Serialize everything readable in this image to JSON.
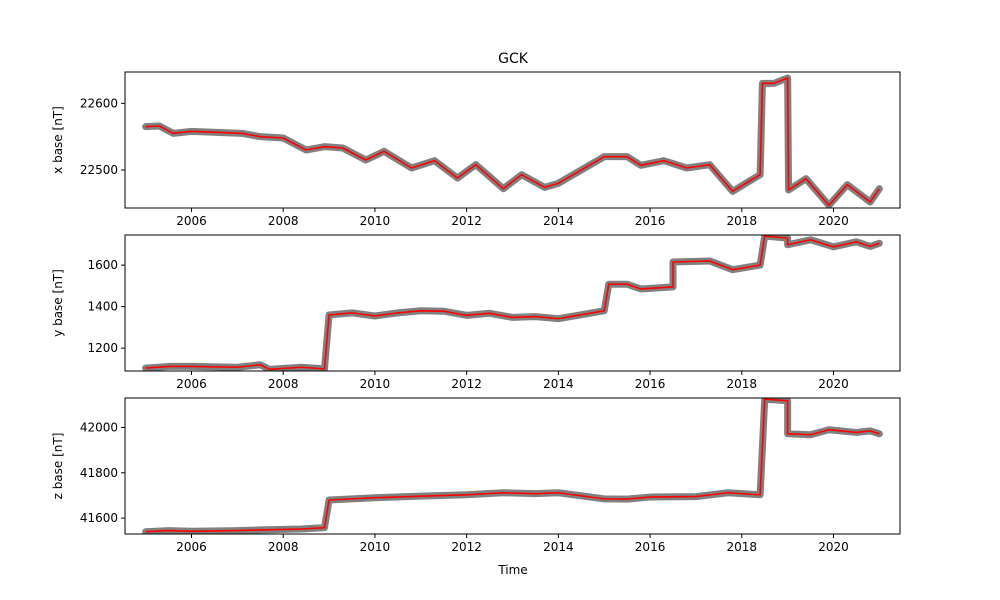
{
  "chart_data": {
    "type": "line",
    "title": "GCK",
    "xlabel": "Time",
    "x_ticks": [
      2006,
      2008,
      2010,
      2012,
      2014,
      2016,
      2018,
      2020
    ],
    "xlim": [
      2004.55,
      2021.45
    ],
    "colors": {
      "points": "#808080",
      "line": "#ff0000"
    },
    "panels": [
      {
        "ylabel": "x base [nT]",
        "ylim": [
          22443,
          22647
        ],
        "y_ticks": [
          22500,
          22600
        ],
        "series": [
          {
            "x": 2005.0,
            "y": 22565
          },
          {
            "x": 2005.3,
            "y": 22566
          },
          {
            "x": 2005.6,
            "y": 22555
          },
          {
            "x": 2006.0,
            "y": 22558
          },
          {
            "x": 2007.1,
            "y": 22555
          },
          {
            "x": 2007.5,
            "y": 22550
          },
          {
            "x": 2008.0,
            "y": 22548
          },
          {
            "x": 2008.5,
            "y": 22530
          },
          {
            "x": 2008.9,
            "y": 22535
          },
          {
            "x": 2009.3,
            "y": 22533
          },
          {
            "x": 2009.8,
            "y": 22515
          },
          {
            "x": 2010.2,
            "y": 22528
          },
          {
            "x": 2010.8,
            "y": 22503
          },
          {
            "x": 2011.3,
            "y": 22514
          },
          {
            "x": 2011.8,
            "y": 22488
          },
          {
            "x": 2012.2,
            "y": 22508
          },
          {
            "x": 2012.8,
            "y": 22472
          },
          {
            "x": 2013.2,
            "y": 22493
          },
          {
            "x": 2013.7,
            "y": 22474
          },
          {
            "x": 2014.0,
            "y": 22480
          },
          {
            "x": 2015.0,
            "y": 22520
          },
          {
            "x": 2015.5,
            "y": 22520
          },
          {
            "x": 2015.8,
            "y": 22507
          },
          {
            "x": 2016.3,
            "y": 22514
          },
          {
            "x": 2016.8,
            "y": 22503
          },
          {
            "x": 2017.3,
            "y": 22508
          },
          {
            "x": 2017.8,
            "y": 22468
          },
          {
            "x": 2018.4,
            "y": 22493
          },
          {
            "x": 2018.45,
            "y": 22630
          },
          {
            "x": 2018.7,
            "y": 22630
          },
          {
            "x": 2019.0,
            "y": 22638
          },
          {
            "x": 2019.02,
            "y": 22470
          },
          {
            "x": 2019.4,
            "y": 22487
          },
          {
            "x": 2019.9,
            "y": 22447
          },
          {
            "x": 2020.3,
            "y": 22478
          },
          {
            "x": 2020.8,
            "y": 22452
          },
          {
            "x": 2021.0,
            "y": 22472
          }
        ]
      },
      {
        "ylabel": "y base [nT]",
        "ylim": [
          1090,
          1745
        ],
        "y_ticks": [
          1200,
          1400,
          1600
        ],
        "series": [
          {
            "x": 2005.0,
            "y": 1104
          },
          {
            "x": 2005.5,
            "y": 1112
          },
          {
            "x": 2006.0,
            "y": 1112
          },
          {
            "x": 2007.0,
            "y": 1108
          },
          {
            "x": 2007.5,
            "y": 1120
          },
          {
            "x": 2007.7,
            "y": 1098
          },
          {
            "x": 2008.4,
            "y": 1108
          },
          {
            "x": 2008.9,
            "y": 1100
          },
          {
            "x": 2009.0,
            "y": 1360
          },
          {
            "x": 2009.5,
            "y": 1370
          },
          {
            "x": 2010.0,
            "y": 1355
          },
          {
            "x": 2010.5,
            "y": 1370
          },
          {
            "x": 2011.0,
            "y": 1380
          },
          {
            "x": 2011.5,
            "y": 1378
          },
          {
            "x": 2012.0,
            "y": 1358
          },
          {
            "x": 2012.5,
            "y": 1368
          },
          {
            "x": 2013.0,
            "y": 1348
          },
          {
            "x": 2013.5,
            "y": 1352
          },
          {
            "x": 2014.0,
            "y": 1342
          },
          {
            "x": 2015.0,
            "y": 1380
          },
          {
            "x": 2015.1,
            "y": 1508
          },
          {
            "x": 2015.5,
            "y": 1508
          },
          {
            "x": 2015.8,
            "y": 1485
          },
          {
            "x": 2016.5,
            "y": 1495
          },
          {
            "x": 2016.5,
            "y": 1615
          },
          {
            "x": 2017.3,
            "y": 1620
          },
          {
            "x": 2017.8,
            "y": 1578
          },
          {
            "x": 2018.4,
            "y": 1600
          },
          {
            "x": 2018.5,
            "y": 1740
          },
          {
            "x": 2019.0,
            "y": 1730
          },
          {
            "x": 2019.0,
            "y": 1698
          },
          {
            "x": 2019.5,
            "y": 1722
          },
          {
            "x": 2020.0,
            "y": 1688
          },
          {
            "x": 2020.5,
            "y": 1712
          },
          {
            "x": 2020.8,
            "y": 1690
          },
          {
            "x": 2021.0,
            "y": 1705
          }
        ]
      },
      {
        "ylabel": "z base [nT]",
        "ylim": [
          41530,
          42130
        ],
        "y_ticks": [
          41600,
          41800,
          42000
        ],
        "series": [
          {
            "x": 2005.0,
            "y": 41540
          },
          {
            "x": 2005.5,
            "y": 41545
          },
          {
            "x": 2006.0,
            "y": 41542
          },
          {
            "x": 2007.0,
            "y": 41545
          },
          {
            "x": 2007.5,
            "y": 41548
          },
          {
            "x": 2008.4,
            "y": 41552
          },
          {
            "x": 2008.9,
            "y": 41558
          },
          {
            "x": 2009.0,
            "y": 41680
          },
          {
            "x": 2009.5,
            "y": 41685
          },
          {
            "x": 2010.0,
            "y": 41690
          },
          {
            "x": 2011.0,
            "y": 41697
          },
          {
            "x": 2012.0,
            "y": 41703
          },
          {
            "x": 2012.8,
            "y": 41712
          },
          {
            "x": 2013.5,
            "y": 41708
          },
          {
            "x": 2014.0,
            "y": 41712
          },
          {
            "x": 2015.0,
            "y": 41685
          },
          {
            "x": 2015.5,
            "y": 41684
          },
          {
            "x": 2016.0,
            "y": 41693
          },
          {
            "x": 2017.0,
            "y": 41695
          },
          {
            "x": 2017.7,
            "y": 41712
          },
          {
            "x": 2018.4,
            "y": 41703
          },
          {
            "x": 2018.5,
            "y": 42125
          },
          {
            "x": 2019.0,
            "y": 42118
          },
          {
            "x": 2019.0,
            "y": 41972
          },
          {
            "x": 2019.5,
            "y": 41968
          },
          {
            "x": 2019.9,
            "y": 41990
          },
          {
            "x": 2020.5,
            "y": 41978
          },
          {
            "x": 2020.8,
            "y": 41985
          },
          {
            "x": 2021.0,
            "y": 41972
          }
        ]
      }
    ]
  }
}
